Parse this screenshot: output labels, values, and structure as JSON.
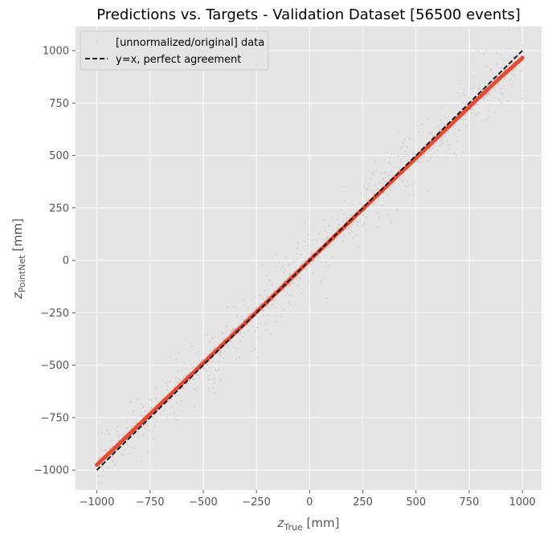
{
  "chart_data": {
    "type": "scatter",
    "title": "Predictions vs. Targets - Validation Dataset [56500 events]",
    "xlabel": {
      "symbol": "z",
      "subscript": "True",
      "unit": " [mm]"
    },
    "ylabel": {
      "symbol": "z",
      "subscript": "PointNet",
      "unit": " [mm]"
    },
    "xlim": [
      -1100,
      1090
    ],
    "ylim": [
      -1095,
      1115
    ],
    "xticks": [
      -1000,
      -750,
      -500,
      -250,
      0,
      250,
      500,
      750,
      1000
    ],
    "yticks": [
      -1000,
      -750,
      -500,
      -250,
      0,
      250,
      500,
      750,
      1000
    ],
    "xtick_labels": [
      "−1000",
      "−750",
      "−500",
      "−250",
      "0",
      "250",
      "500",
      "750",
      "1000"
    ],
    "ytick_labels": [
      "−1000",
      "−750",
      "−500",
      "−250",
      "0",
      "250",
      "500",
      "750",
      "1000"
    ],
    "grid": true,
    "legend_position": "top-left",
    "series": [
      {
        "name": "[unnormalized/original] data",
        "kind": "scatter",
        "color": "#e24a33",
        "x": [
          -1000,
          -900,
          -800,
          -700,
          -600,
          -500,
          -400,
          -300,
          -200,
          -100,
          0,
          100,
          200,
          300,
          400,
          500,
          600,
          700,
          800,
          900,
          1000
        ],
        "y": [
          -975,
          -880,
          -782,
          -685,
          -588,
          -490,
          -393,
          -296,
          -198,
          -99,
          0,
          98,
          196,
          293,
          391,
          488,
          585,
          683,
          780,
          875,
          965
        ]
      },
      {
        "name": "y=x, perfect agreement",
        "kind": "line",
        "color": "#000000",
        "dash": "dashed",
        "x": [
          -1000,
          1000
        ],
        "y": [
          -1000,
          1000
        ]
      }
    ],
    "colors": {
      "plot_background": "#e5e5e5",
      "grid": "#ffffff",
      "tick_text": "#555555",
      "scatter": "#e24a33"
    }
  }
}
